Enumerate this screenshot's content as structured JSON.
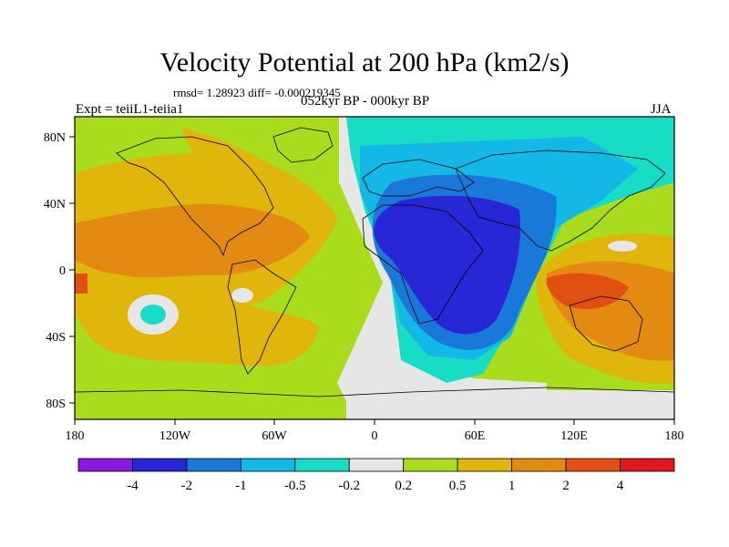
{
  "title": "Velocity Potential at 200 hPa (km2/s)",
  "stats": "rmsd= 1.28923  diff= -0.000219345",
  "experiment": "Expt = teiiL1-teiia1",
  "period": "052kyr BP - 000kyr BP",
  "season": "JJA",
  "axes": {
    "x_ticks": [
      "180",
      "120W",
      "60W",
      "0",
      "60E",
      "120E",
      "180"
    ],
    "y_ticks": [
      "80N",
      "40N",
      "0",
      "40S",
      "80S"
    ]
  },
  "colorbar": {
    "labels": [
      "-4",
      "-2",
      "-1",
      "-0.5",
      "-0.2",
      "0.2",
      "0.5",
      "1",
      "2",
      "4"
    ],
    "colors": [
      "#8a18e0",
      "#2727d6",
      "#1a78d8",
      "#13b8e6",
      "#17dcc6",
      "#e6e6e6",
      "#a9dc1c",
      "#e0b50c",
      "#e28a12",
      "#e24f12",
      "#e0181e"
    ]
  }
}
